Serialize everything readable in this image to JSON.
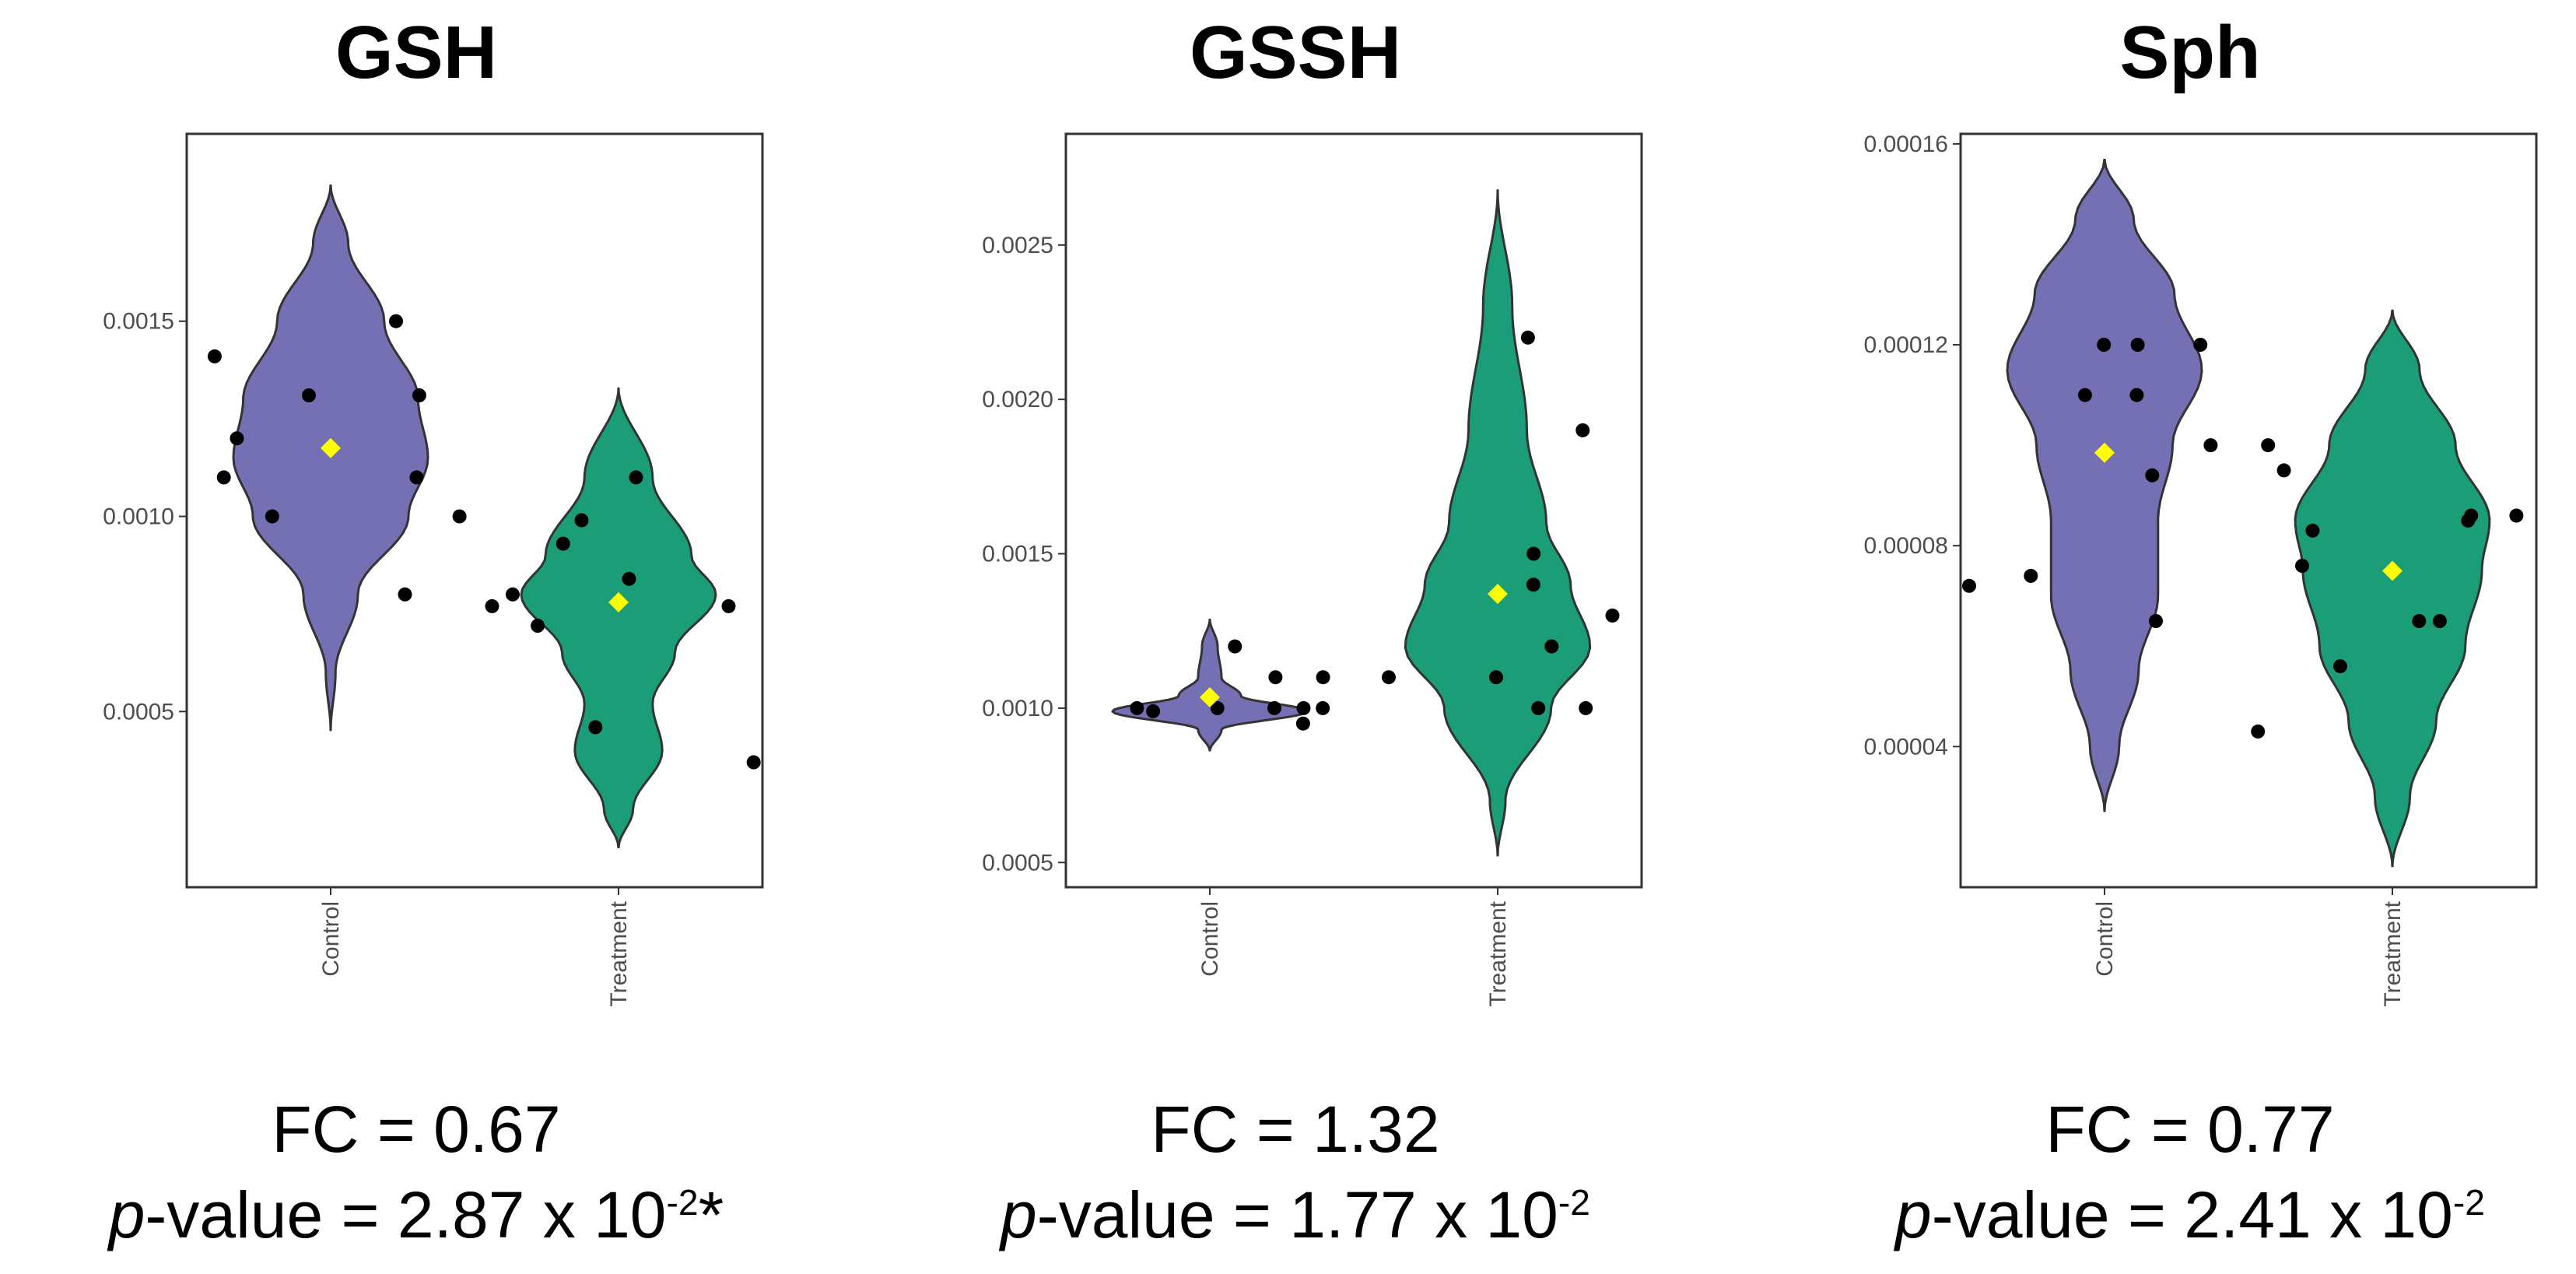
{
  "chart_data": [
    {
      "type": "violin",
      "title": "GSH",
      "xlabel": "",
      "ylabel": "",
      "categories": [
        "Control",
        "Treatment"
      ],
      "yticks": [
        "0.0005",
        "0.0010",
        "0.0015"
      ],
      "ytick_values": [
        0.0005,
        0.001,
        0.0015
      ],
      "ylim": [
        5e-05,
        0.00198
      ],
      "fold_change_label": "FC = 0.67",
      "p_value_prefix": "p",
      "p_value_text": "-value = 2.87 x 10",
      "p_value_exponent": "-2",
      "p_value_suffix": "*",
      "series": [
        {
          "name": "Control",
          "color": "#7570b3",
          "mean": 0.001175,
          "points": [
            0.0015,
            0.00141,
            0.00131,
            0.00131,
            0.0012,
            0.0011,
            0.0011,
            0.001,
            0.001,
            0.0008
          ],
          "violin_range": [
            0.00045,
            0.00185
          ],
          "violin_shape": [
            [
              0.00045,
              0.0
            ],
            [
              0.0006,
              0.05
            ],
            [
              0.0008,
              0.28
            ],
            [
              0.001,
              0.8
            ],
            [
              0.00115,
              1.0
            ],
            [
              0.0013,
              0.9
            ],
            [
              0.0015,
              0.55
            ],
            [
              0.0017,
              0.18
            ],
            [
              0.00185,
              0.0
            ]
          ]
        },
        {
          "name": "Treatment",
          "color": "#1b9e77",
          "mean": 0.00078,
          "points": [
            0.0011,
            0.00099,
            0.00093,
            0.00084,
            0.0008,
            0.00077,
            0.00077,
            0.00072,
            0.00046,
            0.00037
          ],
          "violin_range": [
            0.00015,
            0.00133
          ],
          "violin_shape": [
            [
              0.00015,
              0.0
            ],
            [
              0.00025,
              0.15
            ],
            [
              0.0004,
              0.45
            ],
            [
              0.00052,
              0.35
            ],
            [
              0.00065,
              0.58
            ],
            [
              0.0008,
              1.0
            ],
            [
              0.0009,
              0.75
            ],
            [
              0.0011,
              0.35
            ],
            [
              0.00133,
              0.0
            ]
          ]
        }
      ]
    },
    {
      "type": "violin",
      "title": "GSSH",
      "xlabel": "",
      "ylabel": "",
      "categories": [
        "Control",
        "Treatment"
      ],
      "yticks": [
        "0.0005",
        "0.0010",
        "0.0015",
        "0.0020",
        "0.0025"
      ],
      "ytick_values": [
        0.0005,
        0.001,
        0.0015,
        0.002,
        0.0025
      ],
      "ylim": [
        0.00042,
        0.00286
      ],
      "fold_change_label": "FC = 1.32",
      "p_value_prefix": "p",
      "p_value_text": "-value = 1.77 x 10",
      "p_value_exponent": "-2",
      "p_value_suffix": "",
      "series": [
        {
          "name": "Control",
          "color": "#7570b3",
          "mean": 0.001035,
          "points": [
            0.0012,
            0.0011,
            0.0011,
            0.001,
            0.001,
            0.001,
            0.001,
            0.001,
            0.00099,
            0.00095
          ],
          "violin_range": [
            0.00086,
            0.00129
          ],
          "violin_shape": [
            [
              0.00086,
              0.0
            ],
            [
              0.00093,
              0.12
            ],
            [
              0.00099,
              1.0
            ],
            [
              0.00104,
              0.32
            ],
            [
              0.0011,
              0.12
            ],
            [
              0.0012,
              0.08
            ],
            [
              0.00129,
              0.0
            ]
          ]
        },
        {
          "name": "Treatment",
          "color": "#1b9e77",
          "mean": 0.00137,
          "points": [
            0.0022,
            0.0019,
            0.0015,
            0.0014,
            0.0013,
            0.0012,
            0.0011,
            0.0011,
            0.001,
            0.001
          ],
          "violin_range": [
            0.00052,
            0.00268
          ],
          "violin_shape": [
            [
              0.00052,
              0.0
            ],
            [
              0.0007,
              0.08
            ],
            [
              0.001,
              0.55
            ],
            [
              0.0012,
              0.95
            ],
            [
              0.0014,
              0.75
            ],
            [
              0.0016,
              0.5
            ],
            [
              0.0019,
              0.3
            ],
            [
              0.0023,
              0.15
            ],
            [
              0.00268,
              0.0
            ]
          ]
        }
      ]
    },
    {
      "type": "violin",
      "title": "Sph",
      "xlabel": "",
      "ylabel": "",
      "categories": [
        "Control",
        "Treatment"
      ],
      "yticks": [
        "0.00004",
        "0.00008",
        "0.00012",
        "0.00016"
      ],
      "ytick_values": [
        4e-05,
        8e-05,
        0.00012,
        0.00016
      ],
      "ylim": [
        1.2e-05,
        0.000162
      ],
      "fold_change_label": "FC = 0.77",
      "p_value_prefix": "p",
      "p_value_text": "-value = 2.41 x 10",
      "p_value_exponent": "-2",
      "p_value_suffix": "",
      "series": [
        {
          "name": "Control",
          "color": "#7570b3",
          "mean": 9.85e-05,
          "points": [
            0.00012,
            0.00012,
            0.00012,
            0.00011,
            0.00011,
            0.0001,
            9.4e-05,
            7.4e-05,
            7.2e-05,
            6.5e-05
          ],
          "violin_range": [
            2.7e-05,
            0.000157
          ],
          "violin_shape": [
            [
              2.7e-05,
              0.0
            ],
            [
              4e-05,
              0.15
            ],
            [
              5.5e-05,
              0.35
            ],
            [
              7e-05,
              0.55
            ],
            [
              8.5e-05,
              0.55
            ],
            [
              0.0001,
              0.7
            ],
            [
              0.000115,
              1.0
            ],
            [
              0.00013,
              0.72
            ],
            [
              0.000145,
              0.3
            ],
            [
              0.000157,
              0.0
            ]
          ]
        },
        {
          "name": "Treatment",
          "color": "#1b9e77",
          "mean": 7.5e-05,
          "points": [
            0.0001,
            9.5e-05,
            8.6e-05,
            8.6e-05,
            8.5e-05,
            8.3e-05,
            7.6e-05,
            6.5e-05,
            6.5e-05,
            5.6e-05,
            4.3e-05
          ],
          "violin_range": [
            1.6e-05,
            0.000127
          ],
          "violin_shape": [
            [
              1.6e-05,
              0.0
            ],
            [
              3e-05,
              0.18
            ],
            [
              4.5e-05,
              0.45
            ],
            [
              6e-05,
              0.75
            ],
            [
              7.5e-05,
              0.92
            ],
            [
              8.5e-05,
              1.0
            ],
            [
              0.0001,
              0.65
            ],
            [
              0.000115,
              0.28
            ],
            [
              0.000127,
              0.0
            ]
          ]
        }
      ]
    }
  ]
}
